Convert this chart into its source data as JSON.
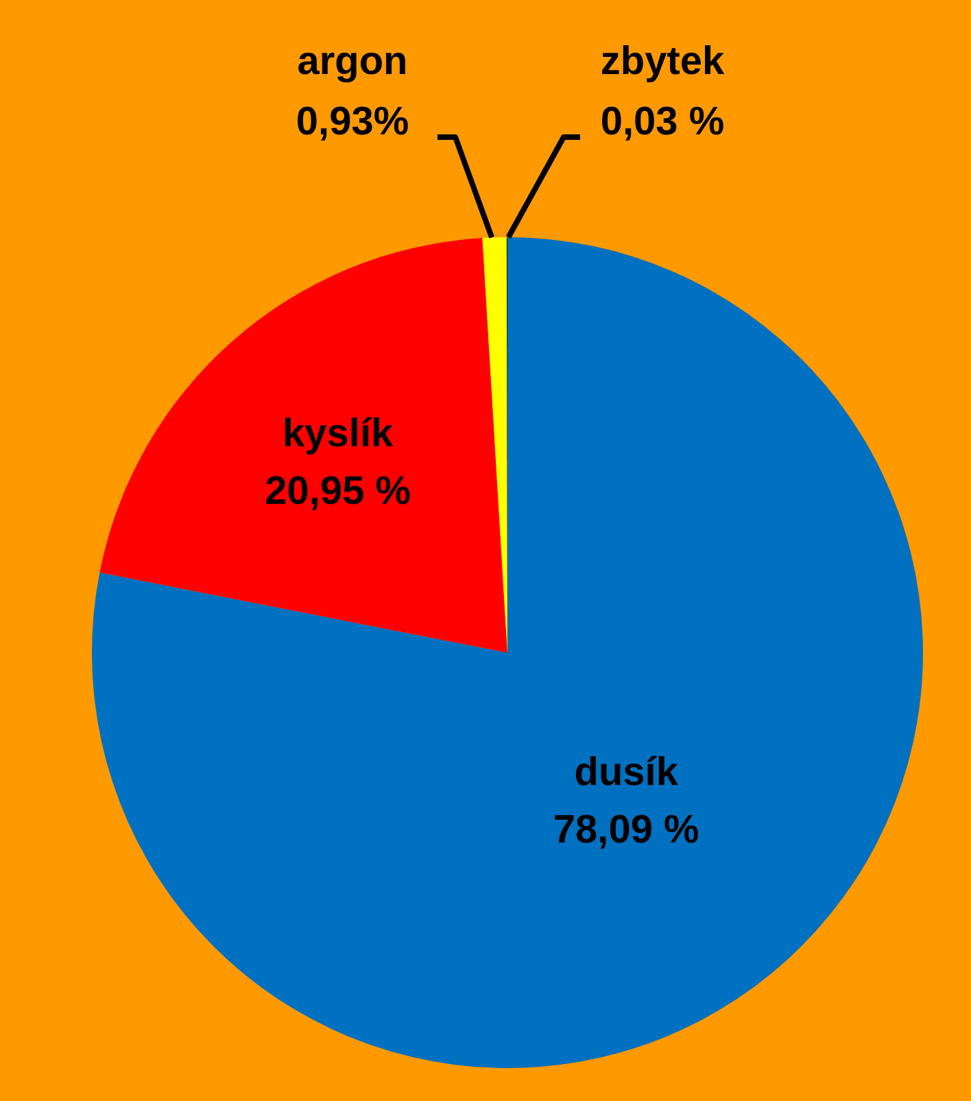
{
  "chart_data": {
    "type": "pie",
    "categories": [
      "dusík",
      "kyslík",
      "argon",
      "zbytek"
    ],
    "values": [
      78.09,
      20.95,
      0.93,
      0.03
    ],
    "colors": [
      "#0070c0",
      "#ff0000",
      "#ffff00",
      "#1a1a1a"
    ],
    "value_labels": [
      "78,09 %",
      "20,95 %",
      "0,93%",
      "0,03 %"
    ]
  }
}
